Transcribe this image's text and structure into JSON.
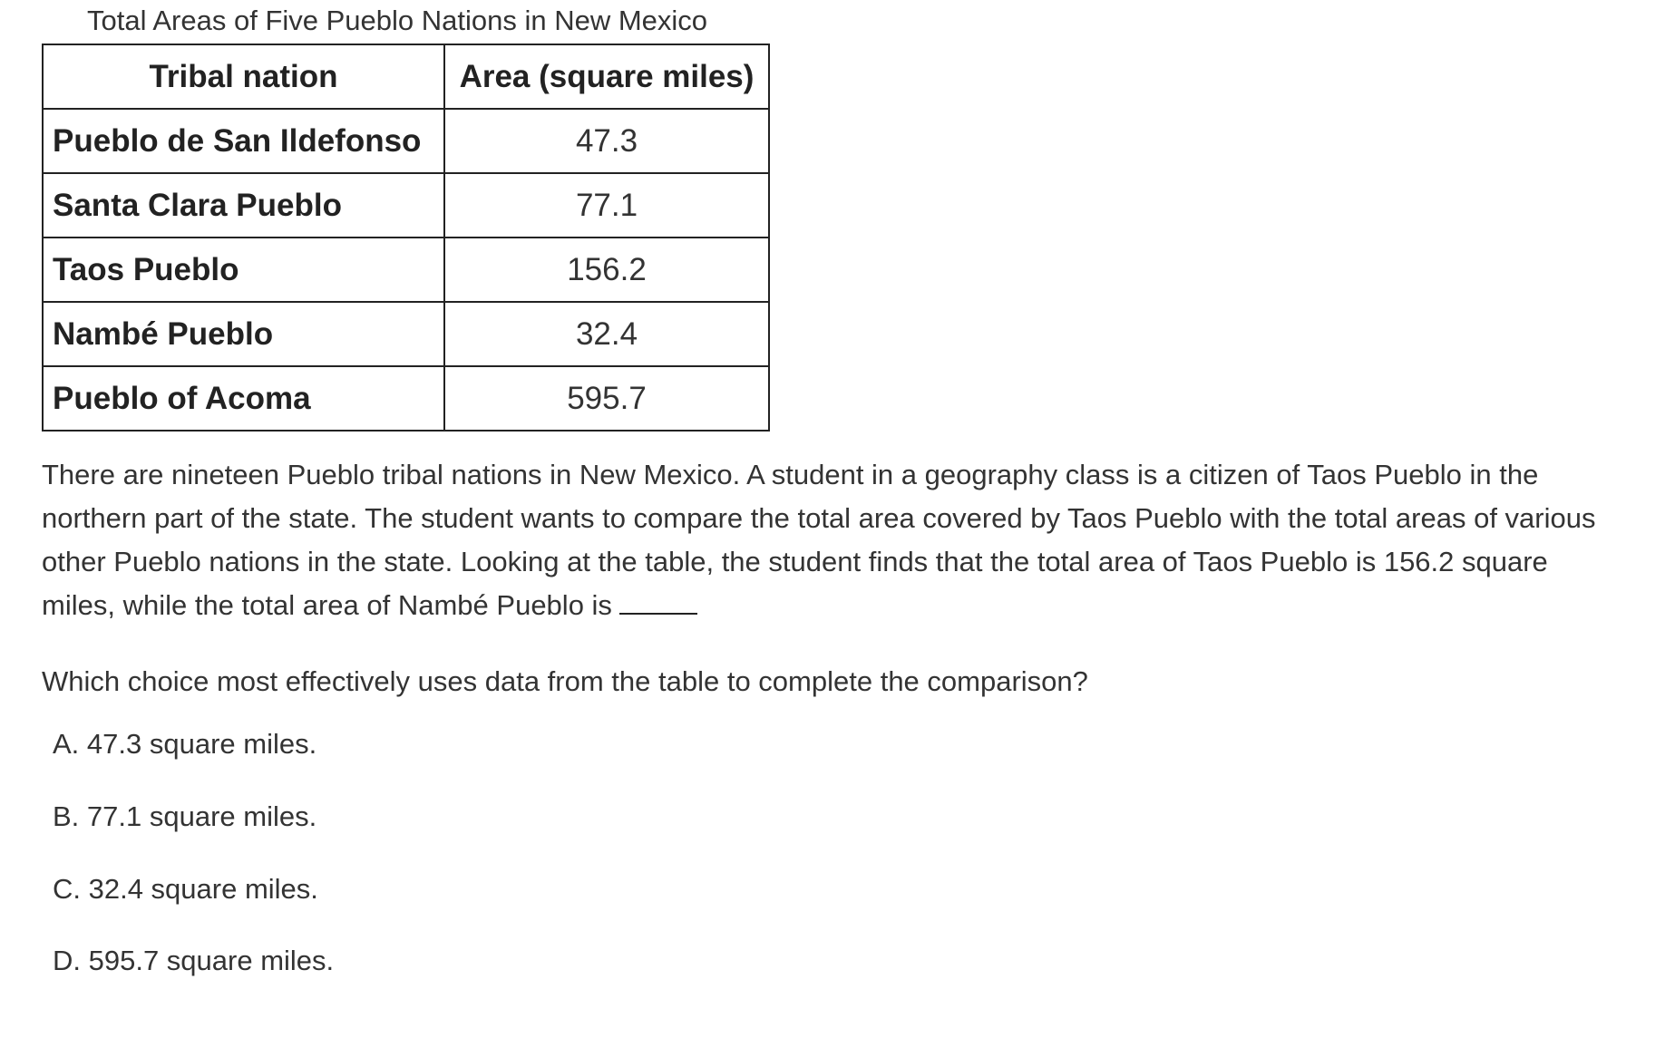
{
  "table": {
    "caption": "Total Areas of Five Pueblo Nations in New Mexico",
    "headers": [
      "Tribal nation",
      "Area (square miles)"
    ],
    "rows": [
      {
        "name": "Pueblo de San Ildefonso",
        "area": "47.3"
      },
      {
        "name": "Santa Clara Pueblo",
        "area": "77.1"
      },
      {
        "name": "Taos Pueblo",
        "area": "156.2"
      },
      {
        "name": "Nambé Pueblo",
        "area": "32.4"
      },
      {
        "name": "Pueblo of Acoma",
        "area": "595.7"
      }
    ]
  },
  "passage": {
    "text": "There are nineteen Pueblo tribal nations in New Mexico. A student in a geography class is a citizen of Taos Pueblo in the northern part of the state. The student wants to compare the total area covered by Taos Pueblo with the total areas of various other Pueblo nations in the state. Looking at the table, the student finds that the total area of Taos Pueblo is 156.2 square miles, while the total area of Nambé Pueblo is"
  },
  "question": "Which choice most effectively uses data from the table to complete the comparison?",
  "choices": [
    {
      "label": "A. 47.3 square miles."
    },
    {
      "label": "B. 77.1 square miles."
    },
    {
      "label": "C. 32.4 square miles."
    },
    {
      "label": "D. 595.7 square miles."
    }
  ]
}
